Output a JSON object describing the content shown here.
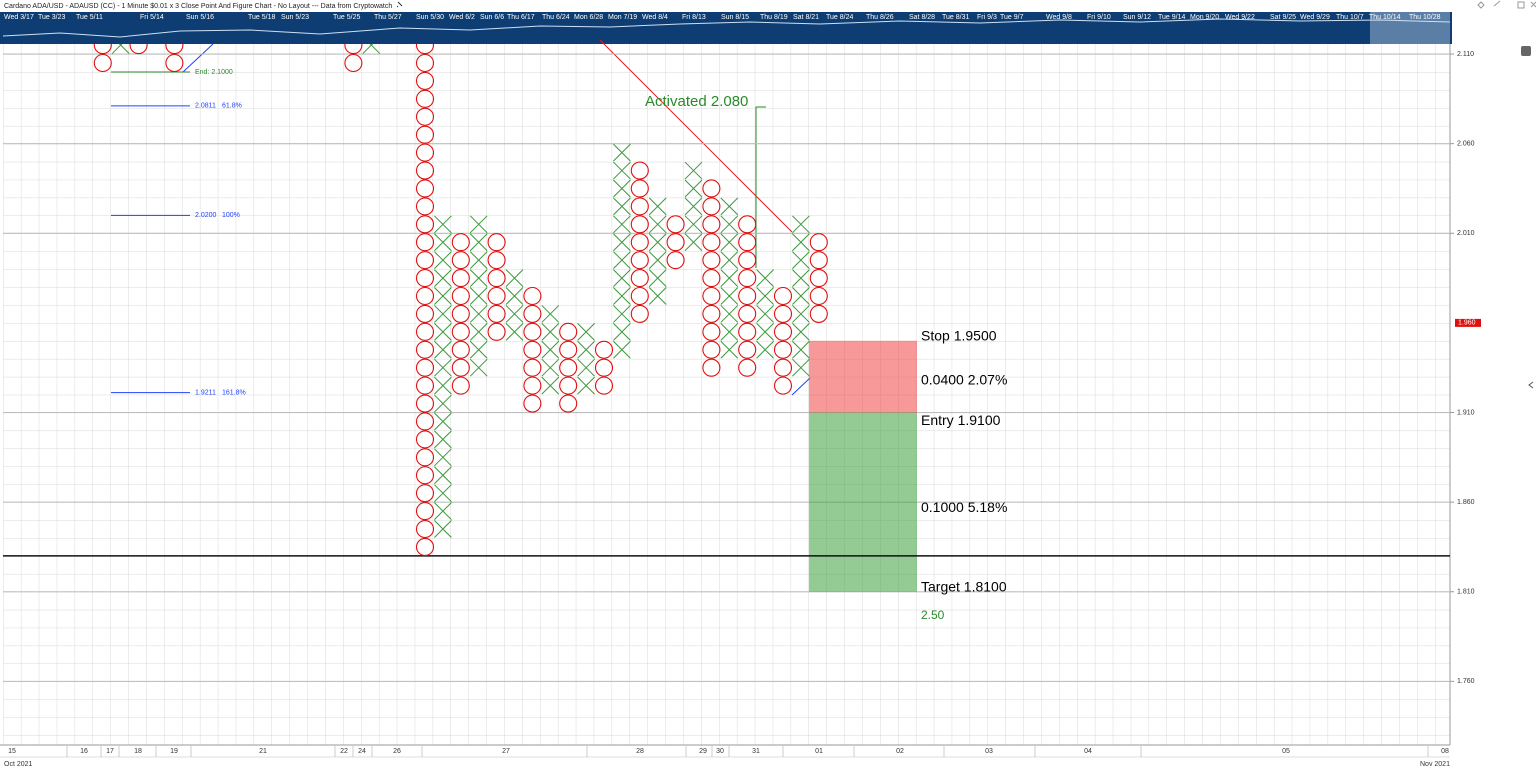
{
  "chart_data": {
    "type": "pointfigure",
    "title": "Cardano ADA/USD - ADAUSD (CC) - 1 Minute $0.01 x 3 Close Point And Figure Chart - No Layout --- Data from Cryptowatch",
    "box_size": 0.01,
    "ylim": [
      1.7245,
      2.1156
    ],
    "yticks": [
      {
        "value": 2.11,
        "label": "2.110"
      },
      {
        "value": 2.06,
        "label": "2.060"
      },
      {
        "value": 2.01,
        "label": "2.010"
      },
      {
        "value": 1.91,
        "label": "1.910"
      },
      {
        "value": 1.86,
        "label": "1.860"
      },
      {
        "value": 1.81,
        "label": "1.810"
      },
      {
        "value": 1.76,
        "label": "1.760"
      }
    ],
    "grid": true,
    "colors": {
      "x": "#3a9a3a",
      "o": "#e01010"
    },
    "columns": [
      {
        "type": "O",
        "high": 2.115,
        "low": 2.105
      },
      {
        "type": "X",
        "high": 2.115,
        "low": 2.115
      },
      {
        "type": "O",
        "high": 2.115,
        "low": 2.115
      },
      {
        "type": "O",
        "high": 2.115,
        "low": 2.105
      },
      {
        "type": "O",
        "high": 2.115,
        "low": 2.105
      },
      {
        "type": "X",
        "high": 2.115,
        "low": 2.115
      },
      {
        "type": "O",
        "high": 2.115,
        "low": 1.835
      },
      {
        "type": "X",
        "high": 2.015,
        "low": 1.845
      },
      {
        "type": "O",
        "high": 2.005,
        "low": 1.925
      },
      {
        "type": "X",
        "high": 2.015,
        "low": 1.935
      },
      {
        "type": "O",
        "high": 2.005,
        "low": 1.955
      },
      {
        "type": "X",
        "high": 1.985,
        "low": 1.955
      },
      {
        "type": "O",
        "high": 1.975,
        "low": 1.915
      },
      {
        "type": "X",
        "high": 1.965,
        "low": 1.925
      },
      {
        "type": "O",
        "high": 1.955,
        "low": 1.915
      },
      {
        "type": "X",
        "high": 1.955,
        "low": 1.925
      },
      {
        "type": "O",
        "high": 1.945,
        "low": 1.925
      },
      {
        "type": "X",
        "high": 2.055,
        "low": 1.945
      },
      {
        "type": "O",
        "high": 2.045,
        "low": 1.965
      },
      {
        "type": "X",
        "high": 2.025,
        "low": 1.975
      },
      {
        "type": "O",
        "high": 2.015,
        "low": 1.995
      },
      {
        "type": "X",
        "high": 2.045,
        "low": 2.005
      },
      {
        "type": "O",
        "high": 2.035,
        "low": 1.935
      },
      {
        "type": "X",
        "high": 2.025,
        "low": 1.945
      },
      {
        "type": "O",
        "high": 2.015,
        "low": 1.935
      },
      {
        "type": "X",
        "high": 1.985,
        "low": 1.945
      },
      {
        "type": "O",
        "high": 1.975,
        "low": 1.925
      },
      {
        "type": "X",
        "high": 2.015,
        "low": 1.935
      },
      {
        "type": "O",
        "high": 2.005,
        "low": 1.965
      }
    ],
    "fib_end": {
      "value": 2.1,
      "label": "End: 2.1000"
    },
    "fib_levels": [
      {
        "value": 2.0811,
        "label": "2.0811",
        "pct": "61.8%"
      },
      {
        "value": 2.02,
        "label": "2.0200",
        "pct": "100%"
      },
      {
        "value": 1.9211,
        "label": "1.9211",
        "pct": "161.8%"
      }
    ],
    "activated": "Activated 2.080",
    "price": {
      "value": 1.96,
      "label": "1.960"
    },
    "hline": 1.83,
    "position": {
      "stop": 1.95,
      "entry": 1.91,
      "target": 1.81,
      "stop_label": "Stop  1.9500",
      "risk_label": "0.0400  2.07%",
      "entry_label": "Entry  1.9100",
      "reward_label": "0.1000  5.18%",
      "target_label": "Target  1.8100",
      "ratio_label": "2.50"
    },
    "x_labels": [
      "15",
      "16",
      "17",
      "18",
      "19",
      "21",
      "22",
      "24",
      "26",
      "27",
      "28",
      "29",
      "30",
      "31",
      "01",
      "02",
      "03",
      "04",
      "05",
      "08"
    ],
    "x_months": [
      "Oct 2021",
      "Nov 2021"
    ],
    "navigator_labels": [
      "Wed 3/17",
      "Tue 3/23",
      "Tue 5/11",
      "Fri 5/14",
      "Sun 5/16",
      "Tue 5/18",
      "Sun 5/23",
      "Tue 5/25",
      "Thu 5/27",
      "Sun 5/30",
      "Wed 6/2",
      "Sun 6/6",
      "Thu 6/17",
      "Thu 6/24",
      "Mon 6/28",
      "Mon 7/19",
      "Wed 8/4",
      "Fri 8/13",
      "Sun 8/15",
      "Thu 8/19",
      "Sat 8/21",
      "Tue 8/24",
      "Thu 8/26",
      "Sat 8/28",
      "Tue 8/31",
      "Fri 9/3",
      "Tue 9/7",
      "Wed 9/8",
      "Fri 9/10",
      "Sun 9/12",
      "Tue 9/14",
      "Mon 9/20",
      "Wed 9/22",
      "Sat 9/25",
      "Wed 9/29",
      "Thu 10/7",
      "Thu 10/14",
      "Thu 10/28"
    ]
  }
}
